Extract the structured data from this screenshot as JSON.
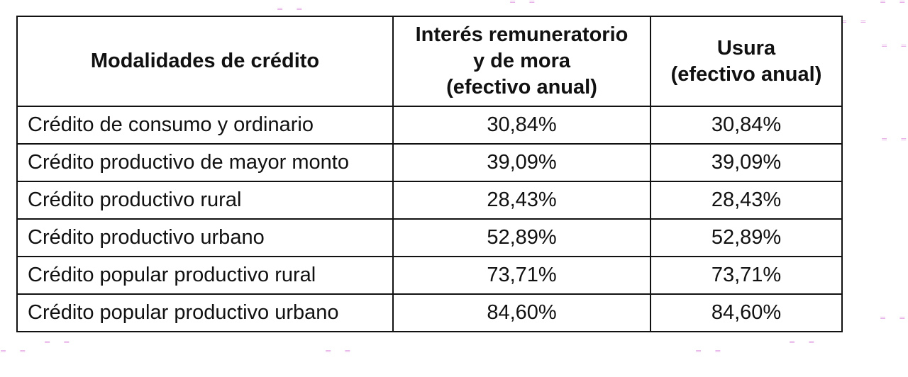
{
  "table": {
    "headers": [
      [
        "Modalidades de crédito"
      ],
      [
        "Interés remuneratorio",
        "y de mora",
        "(efectivo anual)"
      ],
      [
        "Usura",
        "(efectivo anual)"
      ]
    ],
    "rows": [
      {
        "modalidad": "Crédito de consumo y ordinario",
        "interes": "30,84%",
        "usura": "30,84%"
      },
      {
        "modalidad": "Crédito productivo de mayor monto",
        "interes": "39,09%",
        "usura": "39,09%"
      },
      {
        "modalidad": "Crédito productivo rural",
        "interes": "28,43%",
        "usura": "28,43%"
      },
      {
        "modalidad": "Crédito productivo urbano",
        "interes": "52,89%",
        "usura": "52,89%"
      },
      {
        "modalidad": "Crédito popular productivo rural",
        "interes": "73,71%",
        "usura": "73,71%"
      },
      {
        "modalidad": "Crédito popular productivo urbano",
        "interes": "84,60%",
        "usura": "84,60%"
      }
    ]
  },
  "colors": {
    "border": "#111111",
    "background": "#ffffff",
    "watermark": "#e4a8e4"
  }
}
